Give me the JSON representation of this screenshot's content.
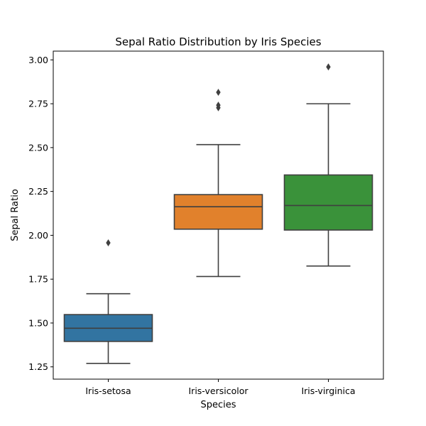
{
  "chart_data": {
    "type": "box",
    "title": "Sepal Ratio Distribution by Iris Species",
    "xlabel": "Species",
    "ylabel": "Sepal Ratio",
    "ylim": [
      1.18,
      3.05
    ],
    "yticks": [
      "1.25",
      "1.50",
      "1.75",
      "2.00",
      "2.25",
      "2.50",
      "2.75",
      "3.00"
    ],
    "grid": false,
    "categories": [
      "Iris-setosa",
      "Iris-versicolor",
      "Iris-virginica"
    ],
    "boxes": [
      {
        "category": "Iris-setosa",
        "whisker_low": 1.27,
        "q1": 1.395,
        "median": 1.47,
        "q3": 1.548,
        "whisker_high": 1.667,
        "outliers": [
          1.957
        ],
        "color": "#3274a1"
      },
      {
        "category": "Iris-versicolor",
        "whisker_low": 1.765,
        "q1": 2.035,
        "median": 2.163,
        "q3": 2.232,
        "whisker_high": 2.517,
        "outliers": [
          2.727,
          2.742,
          2.815
        ],
        "color": "#e1812c"
      },
      {
        "category": "Iris-virginica",
        "whisker_low": 1.825,
        "q1": 2.03,
        "median": 2.17,
        "q3": 2.344,
        "whisker_high": 2.75,
        "outliers": [
          2.96
        ],
        "color": "#3a923a"
      }
    ]
  }
}
